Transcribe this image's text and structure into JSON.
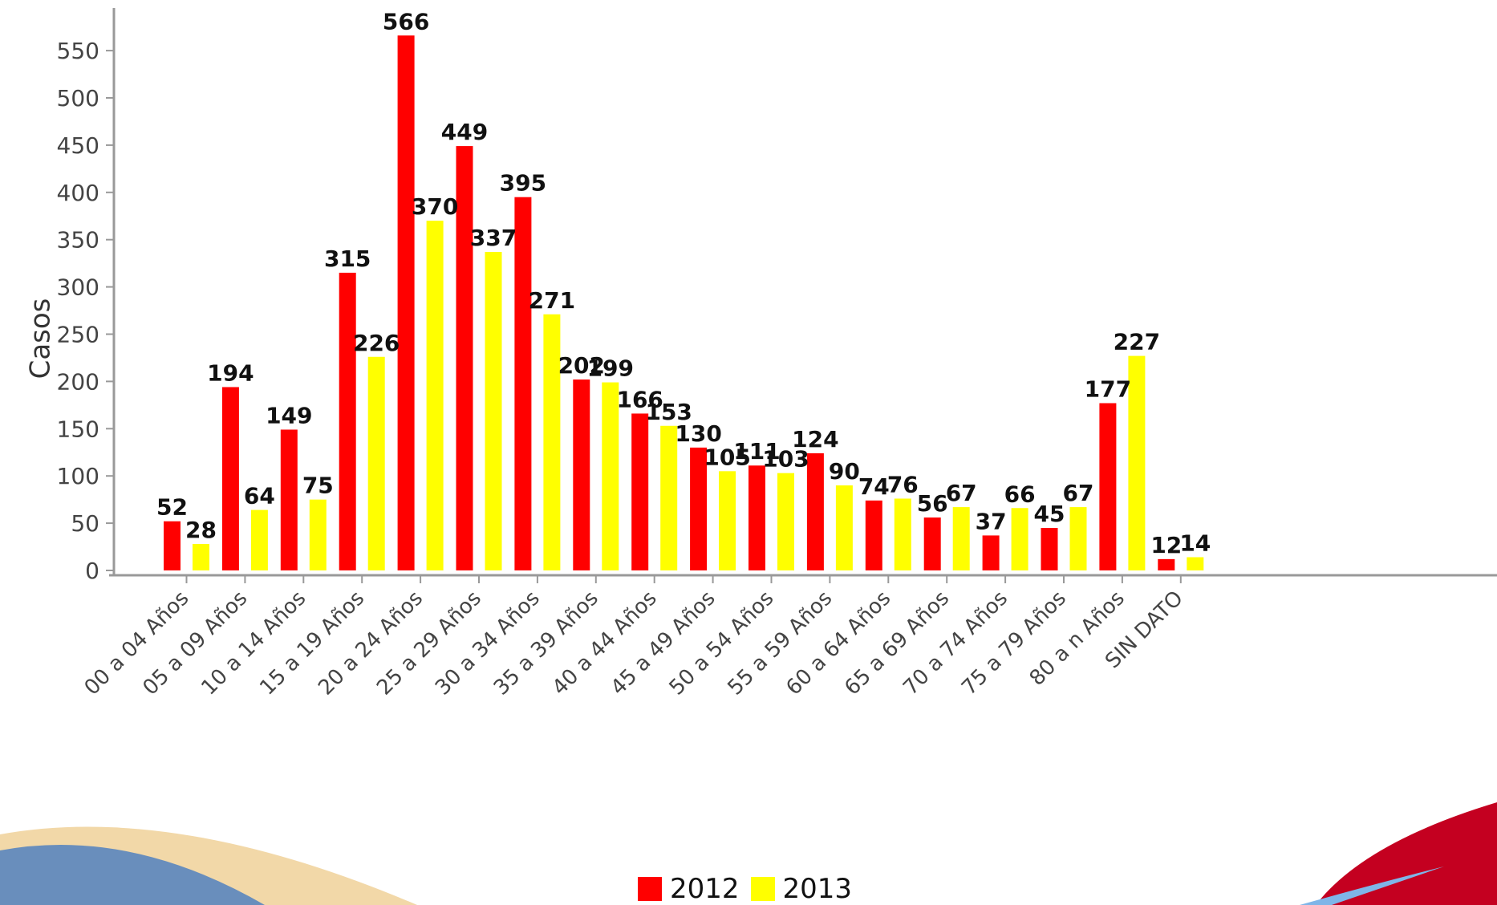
{
  "chart_data": {
    "type": "bar",
    "title": "",
    "xlabel": "",
    "ylabel": "Casos",
    "ylim": [
      0,
      580
    ],
    "yticks": [
      0,
      50,
      100,
      150,
      200,
      250,
      300,
      350,
      400,
      450,
      500,
      550
    ],
    "categories": [
      "00 a 04 Años",
      "05 a 09 Años",
      "10 a 14 Años",
      "15 a 19 Años",
      "20 a 24 Años",
      "25 a 29 Años",
      "30 a 34 Años",
      "35 a 39 Años",
      "40 a 44 Años",
      "45 a 49 Años",
      "50 a 54 Años",
      "55 a 59 Años",
      "60 a 64 Años",
      "65 a 69 Años",
      "70 a 74 Años",
      "75 a 79 Años",
      "80 a n Años",
      "SIN DATO"
    ],
    "series": [
      {
        "name": "2012",
        "color": "#ff0000",
        "values": [
          52,
          194,
          149,
          315,
          566,
          449,
          395,
          202,
          166,
          130,
          111,
          124,
          74,
          56,
          37,
          45,
          177,
          12
        ]
      },
      {
        "name": "2013",
        "color": "#ffff00",
        "values": [
          28,
          64,
          75,
          226,
          370,
          337,
          271,
          199,
          153,
          105,
          103,
          90,
          76,
          67,
          66,
          67,
          227,
          14
        ]
      }
    ],
    "grid": false,
    "legend_position": "bottom-center",
    "data_labels": true
  }
}
